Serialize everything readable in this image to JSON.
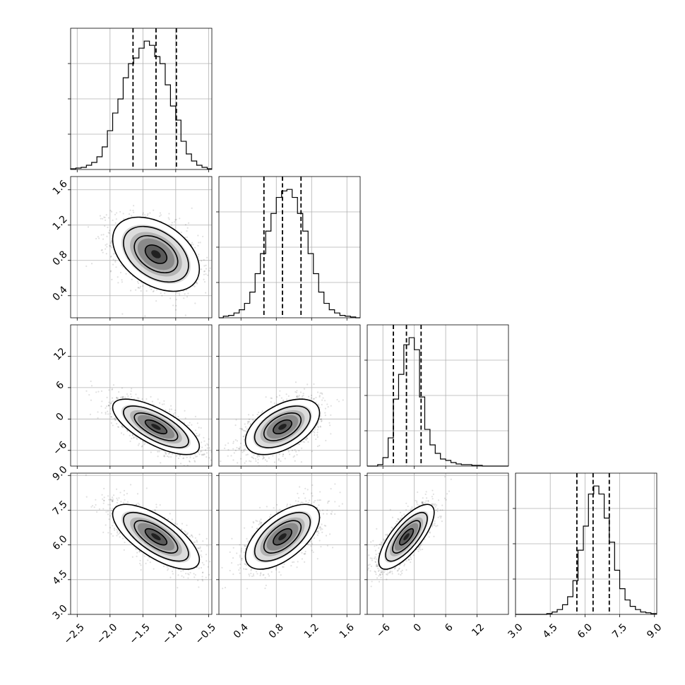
{
  "chart_data": {
    "type": "corner",
    "title": "",
    "grid": true,
    "parameters": [
      {
        "name": "",
        "range": [
          -2.6,
          -0.45
        ],
        "ticks": [
          -2.5,
          -2.0,
          -1.5,
          -1.0,
          -0.5
        ],
        "tick_labels": [
          "−2.5",
          "−2.0",
          "−1.5",
          "−1.0",
          "−0.5"
        ],
        "median": -1.3,
        "quantiles": [
          -1.65,
          -1.3,
          -0.99
        ]
      },
      {
        "name": "",
        "range": [
          0.15,
          1.75
        ],
        "ticks": [
          0.4,
          0.8,
          1.2,
          1.6
        ],
        "tick_labels": [
          "0.4",
          "0.8",
          "1.2",
          "1.6"
        ],
        "median": 0.87,
        "quantiles": [
          0.66,
          0.87,
          1.08
        ]
      },
      {
        "name": "",
        "range": [
          -9,
          18
        ],
        "ticks": [
          -6,
          0,
          6,
          12
        ],
        "tick_labels": [
          "−6",
          "0",
          "6",
          "12"
        ],
        "median": -1.5,
        "quantiles": [
          -4.0,
          -1.5,
          1.3
        ]
      },
      {
        "name": "",
        "range": [
          3.0,
          9.1
        ],
        "ticks": [
          3.0,
          4.5,
          6.0,
          7.5,
          9.0
        ],
        "tick_labels": [
          "3.0",
          "4.5",
          "6.0",
          "7.5",
          "9.0"
        ],
        "median": 6.35,
        "quantiles": [
          5.65,
          6.35,
          7.05
        ]
      }
    ],
    "histograms": [
      {
        "param": 0,
        "bin_edges": [
          -2.6,
          -2.52,
          -2.44,
          -2.36,
          -2.28,
          -2.2,
          -2.12,
          -2.04,
          -1.96,
          -1.88,
          -1.8,
          -1.72,
          -1.64,
          -1.56,
          -1.48,
          -1.4,
          -1.32,
          -1.24,
          -1.16,
          -1.08,
          -1.0,
          -0.92,
          -0.84,
          -0.76,
          -0.68,
          -0.6,
          -0.52,
          -0.45
        ],
        "counts": [
          1,
          2,
          3,
          6,
          10,
          18,
          32,
          55,
          80,
          100,
          130,
          150,
          158,
          172,
          182,
          176,
          160,
          150,
          120,
          90,
          70,
          40,
          22,
          12,
          6,
          3,
          1
        ]
      },
      {
        "param": 1,
        "bin_edges": [
          0.15,
          0.2,
          0.26,
          0.32,
          0.38,
          0.44,
          0.5,
          0.56,
          0.62,
          0.68,
          0.74,
          0.8,
          0.86,
          0.92,
          0.98,
          1.04,
          1.1,
          1.16,
          1.22,
          1.28,
          1.34,
          1.4,
          1.46,
          1.52,
          1.58,
          1.64,
          1.7,
          1.75
        ],
        "counts": [
          0,
          2,
          3,
          6,
          10,
          18,
          32,
          55,
          80,
          108,
          130,
          150,
          158,
          160,
          150,
          130,
          108,
          80,
          55,
          32,
          18,
          10,
          6,
          3,
          2,
          1,
          0
        ]
      },
      {
        "param": 2,
        "bin_edges": [
          -9,
          -8,
          -7,
          -6,
          -5,
          -4,
          -3,
          -2,
          -1,
          0,
          1,
          2,
          3,
          4,
          5,
          6,
          7,
          8,
          9,
          10,
          11,
          12,
          13,
          14,
          15,
          16,
          17,
          18
        ],
        "counts": [
          0,
          0,
          2,
          12,
          40,
          95,
          130,
          172,
          182,
          165,
          98,
          52,
          30,
          18,
          10,
          8,
          5,
          3,
          2,
          2,
          1,
          1,
          0,
          0,
          0,
          0,
          0
        ]
      },
      {
        "param": 3,
        "bin_edges": [
          3.0,
          3.23,
          3.45,
          3.68,
          3.9,
          4.13,
          4.35,
          4.58,
          4.8,
          5.03,
          5.25,
          5.48,
          5.7,
          5.93,
          6.15,
          6.38,
          6.6,
          6.83,
          7.05,
          7.28,
          7.5,
          7.73,
          7.95,
          8.18,
          8.4,
          8.63,
          8.85,
          9.1
        ],
        "counts": [
          0,
          0,
          0,
          0,
          0,
          0,
          1,
          3,
          6,
          12,
          22,
          42,
          80,
          110,
          150,
          160,
          150,
          120,
          90,
          55,
          32,
          18,
          10,
          6,
          3,
          2,
          1
        ]
      }
    ],
    "pairs": [
      {
        "x": 0,
        "y": 1,
        "correlation": -0.4
      },
      {
        "x": 0,
        "y": 2,
        "correlation": -0.7
      },
      {
        "x": 1,
        "y": 2,
        "correlation": 0.5
      },
      {
        "x": 0,
        "y": 3,
        "correlation": -0.7
      },
      {
        "x": 1,
        "y": 3,
        "correlation": 0.6
      },
      {
        "x": 2,
        "y": 3,
        "correlation": 0.75
      }
    ],
    "density_levels_sigma": [
      0.5,
      1.0,
      1.5,
      2.0
    ]
  }
}
